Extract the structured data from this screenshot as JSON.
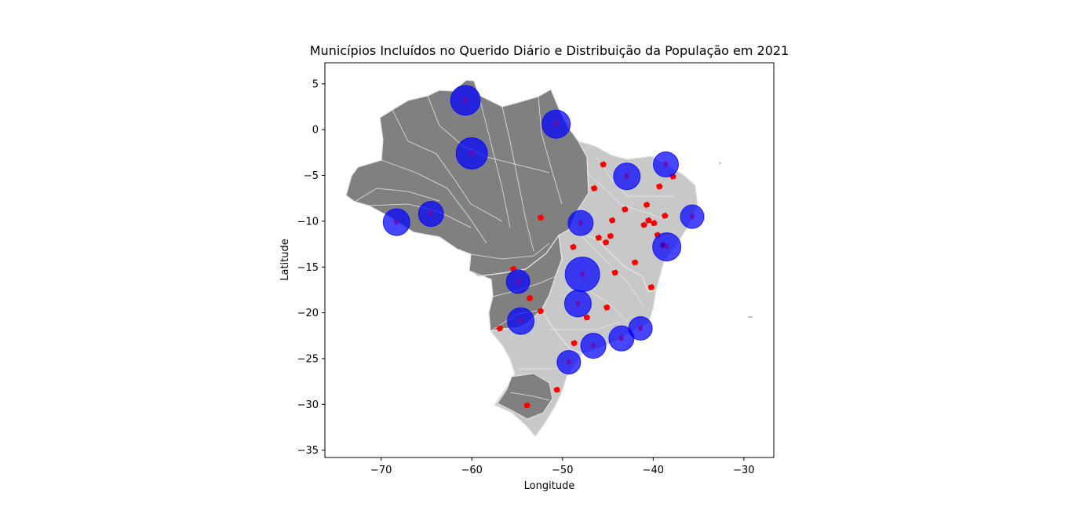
{
  "chart_data": {
    "type": "scatter",
    "title": "Municípios Incluídos no Querido Diário e Distribuição da População em 2021",
    "xlabel": "Longitude",
    "ylabel": "Latitude",
    "xlim": [
      -76.2,
      -26.7
    ],
    "ylim": [
      -35.8,
      7.3
    ],
    "xticks": [
      -70,
      -60,
      -50,
      -40,
      -30
    ],
    "yticks": [
      5,
      0,
      -5,
      -10,
      -15,
      -20,
      -25,
      -30,
      -35
    ],
    "xtick_labels": [
      "−70",
      "−60",
      "−50",
      "−40",
      "−30"
    ],
    "ytick_labels": [
      "5",
      "0",
      "−5",
      "−10",
      "−15",
      "−20",
      "−25",
      "−30",
      "−35"
    ],
    "grid": false,
    "colors": {
      "basemap_dark": "#808080",
      "basemap_light": "#c8c8c8",
      "municipality_borders": "#e6e6e6",
      "included_municipalities": "#ff0000",
      "population_bubbles": "#0000ff"
    },
    "points": [
      {
        "lon": -60.7,
        "lat": 3.2,
        "size": 19
      },
      {
        "lon": -60.0,
        "lat": -2.6,
        "size": 20
      },
      {
        "lon": -50.7,
        "lat": 0.6,
        "size": 18
      },
      {
        "lon": -38.6,
        "lat": -3.8,
        "size": 16
      },
      {
        "lon": -42.9,
        "lat": -5.1,
        "size": 17
      },
      {
        "lon": -35.7,
        "lat": -9.5,
        "size": 15
      },
      {
        "lon": -48.0,
        "lat": -10.2,
        "size": 16
      },
      {
        "lon": -64.5,
        "lat": -9.2,
        "size": 16
      },
      {
        "lon": -68.3,
        "lat": -10.1,
        "size": 17
      },
      {
        "lon": -38.5,
        "lat": -12.8,
        "size": 18
      },
      {
        "lon": -47.8,
        "lat": -15.8,
        "size": 22
      },
      {
        "lon": -54.9,
        "lat": -16.6,
        "size": 15
      },
      {
        "lon": -48.3,
        "lat": -19.0,
        "size": 17
      },
      {
        "lon": -54.6,
        "lat": -20.9,
        "size": 17
      },
      {
        "lon": -41.4,
        "lat": -21.7,
        "size": 15
      },
      {
        "lon": -43.5,
        "lat": -22.8,
        "size": 16
      },
      {
        "lon": -46.6,
        "lat": -23.6,
        "size": 16
      },
      {
        "lon": -49.3,
        "lat": -25.4,
        "size": 15
      }
    ],
    "included_municipalities": [
      {
        "lon": -38.7,
        "lat": -9.4
      },
      {
        "lon": -40.5,
        "lat": -9.9
      },
      {
        "lon": -41.0,
        "lat": -10.4
      },
      {
        "lon": -39.9,
        "lat": -10.2
      },
      {
        "lon": -46.0,
        "lat": -11.8
      },
      {
        "lon": -45.2,
        "lat": -12.3
      },
      {
        "lon": -44.7,
        "lat": -11.6
      },
      {
        "lon": -39.5,
        "lat": -11.5
      },
      {
        "lon": -38.9,
        "lat": -12.6
      },
      {
        "lon": -52.4,
        "lat": -9.6
      },
      {
        "lon": -55.4,
        "lat": -15.2
      },
      {
        "lon": -53.6,
        "lat": -18.4
      },
      {
        "lon": -52.4,
        "lat": -19.8
      },
      {
        "lon": -56.9,
        "lat": -21.7
      },
      {
        "lon": -48.7,
        "lat": -23.3
      },
      {
        "lon": -42.0,
        "lat": -14.5
      },
      {
        "lon": -40.2,
        "lat": -17.2
      },
      {
        "lon": -44.2,
        "lat": -15.6
      },
      {
        "lon": -46.5,
        "lat": -6.4
      },
      {
        "lon": -45.5,
        "lat": -3.8
      },
      {
        "lon": -39.3,
        "lat": -6.2
      },
      {
        "lon": -40.7,
        "lat": -8.2
      },
      {
        "lon": -53.9,
        "lat": -30.1
      },
      {
        "lon": -50.6,
        "lat": -28.4
      },
      {
        "lon": -45.1,
        "lat": -19.4
      },
      {
        "lon": -47.3,
        "lat": -20.5
      },
      {
        "lon": -44.5,
        "lat": -9.9
      },
      {
        "lon": -43.1,
        "lat": -8.7
      },
      {
        "lon": -37.8,
        "lat": -5.1
      },
      {
        "lon": -48.8,
        "lat": -12.8
      }
    ]
  }
}
